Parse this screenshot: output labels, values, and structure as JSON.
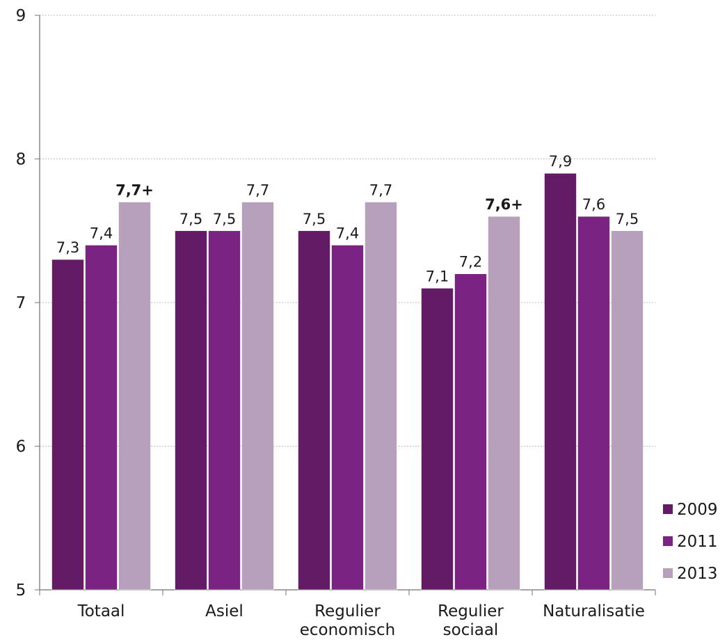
{
  "chart_data": {
    "type": "bar",
    "title": "",
    "xlabel": "",
    "ylabel": "",
    "ylim": [
      5,
      9
    ],
    "y_ticks": [
      "5",
      "6",
      "7",
      "8",
      "9"
    ],
    "grid": true,
    "legend_position": "right-bottom",
    "categories": [
      [
        "Totaal"
      ],
      [
        "Asiel"
      ],
      [
        "Regulier",
        "economisch"
      ],
      [
        "Regulier",
        "sociaal"
      ],
      [
        "Naturalisatie"
      ]
    ],
    "series": [
      {
        "name": "2009",
        "color": "#631b66",
        "values": [
          7.3,
          7.5,
          7.5,
          7.1,
          7.9
        ],
        "labels": [
          "7,3",
          "7,5",
          "7,5",
          "7,1",
          "7,9"
        ],
        "bold": [
          false,
          false,
          false,
          false,
          false
        ]
      },
      {
        "name": "2011",
        "color": "#7a2383",
        "values": [
          7.4,
          7.5,
          7.4,
          7.2,
          7.6
        ],
        "labels": [
          "7,4",
          "7,5",
          "7,4",
          "7,2",
          "7,6"
        ],
        "bold": [
          false,
          false,
          false,
          false,
          false
        ]
      },
      {
        "name": "2013",
        "color": "#b7a0bb",
        "values": [
          7.7,
          7.7,
          7.7,
          7.6,
          7.5
        ],
        "labels": [
          "7,7+",
          "7,7",
          "7,7",
          "7,6+",
          "7,5"
        ],
        "bold": [
          true,
          false,
          false,
          true,
          false
        ]
      }
    ]
  }
}
